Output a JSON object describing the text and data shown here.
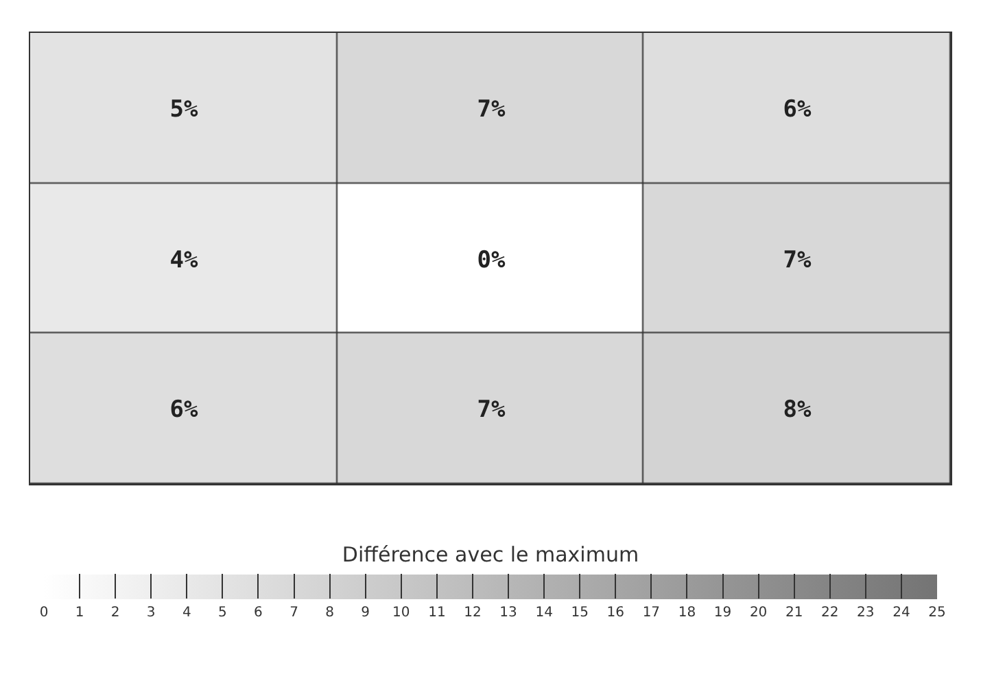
{
  "chart_data": {
    "type": "heatmap",
    "clabel": "Différence avec le maximum",
    "categories": [
      null,
      null,
      null
    ],
    "y_categories": [
      null,
      null,
      null
    ],
    "cells": [
      [
        5,
        7,
        6
      ],
      [
        4,
        0,
        7
      ],
      [
        6,
        7,
        8
      ]
    ],
    "cell_labels": [
      [
        "5%",
        "7%",
        "6%"
      ],
      [
        "4%",
        "0%",
        "7%"
      ],
      [
        "6%",
        "7%",
        "8%"
      ]
    ],
    "clim": [
      0,
      25
    ],
    "cticks": [
      0,
      1,
      2,
      3,
      4,
      5,
      6,
      7,
      8,
      9,
      10,
      11,
      12,
      13,
      14,
      15,
      16,
      17,
      18,
      19,
      20,
      21,
      22,
      23,
      24,
      25
    ]
  }
}
